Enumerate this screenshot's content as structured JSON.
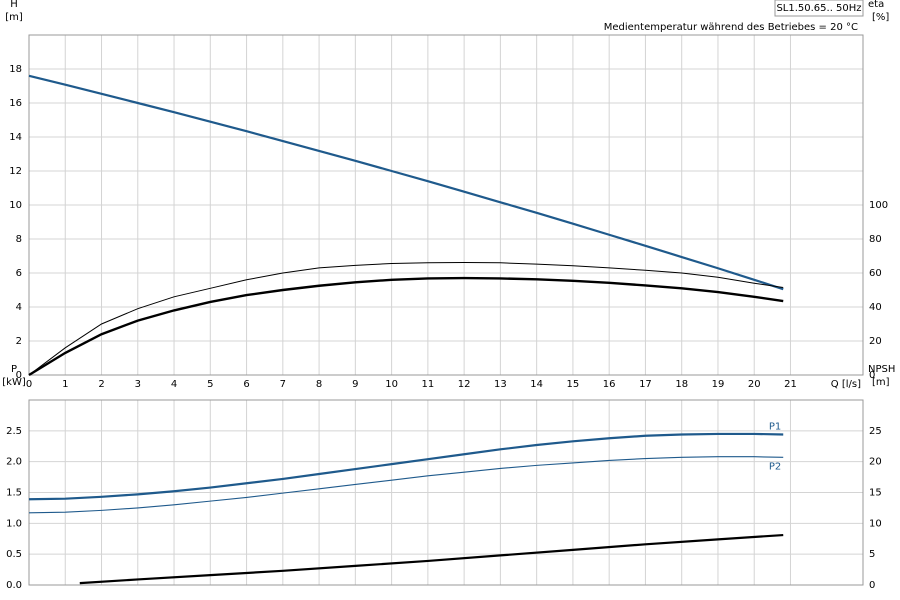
{
  "header": {
    "model": "SL1.50.65.. 50Hz",
    "note": "Medientemperatur während des Betriebes = 20 °C"
  },
  "chart_data": [
    {
      "type": "line",
      "xlabel": "Q [l/s]",
      "ylabel": "H",
      "yunit": "[m]",
      "y2label": "eta",
      "y2unit": "[%]",
      "xlim": [
        0,
        23
      ],
      "xticks": [
        0,
        1,
        2,
        3,
        4,
        5,
        6,
        7,
        8,
        9,
        10,
        11,
        12,
        13,
        14,
        15,
        16,
        17,
        18,
        19,
        20,
        21
      ],
      "ylim": [
        0,
        20
      ],
      "yticks": [
        0,
        2,
        4,
        6,
        8,
        10,
        12,
        14,
        16,
        18
      ],
      "y2lim": [
        0,
        200
      ],
      "y2ticks": [
        0,
        20,
        40,
        60,
        80,
        100
      ],
      "grid": true,
      "x": [
        0,
        1,
        2,
        3,
        4,
        5,
        6,
        7,
        8,
        9,
        10,
        11,
        12,
        13,
        14,
        15,
        16,
        17,
        18,
        19,
        20,
        20.8
      ],
      "series": [
        {
          "color": "#1f5a8c",
          "width": 2.2,
          "values": [
            17.6,
            17.08,
            16.54,
            16.0,
            15.46,
            14.9,
            14.34,
            13.76,
            13.18,
            12.6,
            12.0,
            11.4,
            10.78,
            10.16,
            9.54,
            8.9,
            8.25,
            7.6,
            6.94,
            6.28,
            5.6,
            5.05
          ]
        },
        {
          "color": "#000000",
          "width": 1,
          "axis": "y2",
          "values": [
            0,
            16,
            30,
            39,
            46,
            51,
            56,
            60,
            63,
            64.5,
            65.6,
            66,
            66.2,
            66,
            65.2,
            64.3,
            63,
            61.6,
            60,
            57.5,
            54,
            51.5
          ]
        },
        {
          "color": "#000000",
          "width": 2.4,
          "axis": "y2",
          "values": [
            0,
            13,
            24,
            32,
            38,
            43,
            47,
            50,
            52.5,
            54.5,
            56,
            56.8,
            57,
            56.8,
            56.3,
            55.4,
            54.2,
            52.7,
            51,
            48.8,
            46,
            43.5
          ]
        }
      ]
    },
    {
      "type": "line",
      "ylabel": "P",
      "yunit": "[kW]",
      "y2label": "NPSH",
      "y2unit": "[m]",
      "xlim": [
        0,
        23
      ],
      "ylim": [
        0,
        3
      ],
      "yticks": [
        {
          "value": 0,
          "label": "0.0"
        },
        0.5,
        {
          "value": 1,
          "label": "1.0"
        },
        1.5,
        {
          "value": 2,
          "label": "2.0"
        },
        2.5
      ],
      "y2lim": [
        0,
        30
      ],
      "y2ticks": [
        0,
        5,
        10,
        15,
        20,
        25
      ],
      "grid": true,
      "x": [
        0,
        1,
        2,
        3,
        4,
        5,
        6,
        7,
        8,
        9,
        10,
        11,
        12,
        13,
        14,
        15,
        16,
        17,
        18,
        19,
        20,
        20.8
      ],
      "series": [
        {
          "name": "P1",
          "color": "#1f5a8c",
          "width": 2.2,
          "values": [
            1.39,
            1.4,
            1.43,
            1.47,
            1.52,
            1.58,
            1.65,
            1.72,
            1.8,
            1.88,
            1.96,
            2.04,
            2.12,
            2.2,
            2.27,
            2.33,
            2.38,
            2.42,
            2.44,
            2.45,
            2.45,
            2.44
          ]
        },
        {
          "name": "P2",
          "color": "#1f5a8c",
          "width": 1.1,
          "values": [
            1.17,
            1.18,
            1.21,
            1.25,
            1.3,
            1.36,
            1.42,
            1.49,
            1.56,
            1.63,
            1.7,
            1.77,
            1.83,
            1.89,
            1.94,
            1.98,
            2.02,
            2.05,
            2.07,
            2.08,
            2.08,
            2.07
          ]
        },
        {
          "color": "#000000",
          "width": 2.2,
          "axis": "y2",
          "x": [
            1.4,
            3,
            5,
            7,
            9,
            11,
            13,
            15,
            17,
            19,
            20.8
          ],
          "values": [
            0.3,
            0.9,
            1.6,
            2.3,
            3.1,
            3.9,
            4.8,
            5.7,
            6.6,
            7.4,
            8.1
          ]
        }
      ]
    }
  ]
}
